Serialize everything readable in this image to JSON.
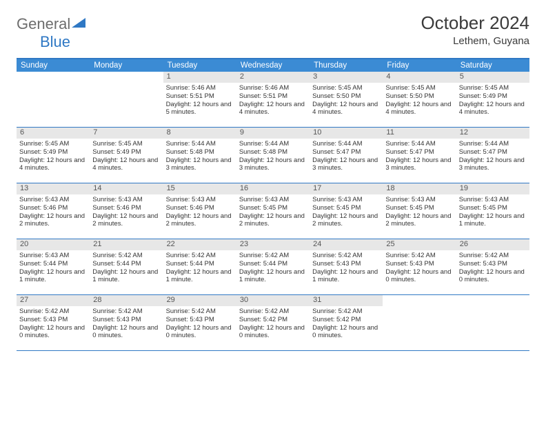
{
  "colors": {
    "header_bg": "#3b8bd4",
    "rule": "#2f78c4",
    "daynum_bg": "#e7e7e7",
    "text": "#333333",
    "title_text": "#3a3a3a",
    "logo_grey": "#6d6d6d",
    "logo_blue": "#2f78c4",
    "page_bg": "#ffffff"
  },
  "logo": {
    "part1": "General",
    "part2": "Blue"
  },
  "title": "October 2024",
  "location": "Lethem, Guyana",
  "weekdays": [
    "Sunday",
    "Monday",
    "Tuesday",
    "Wednesday",
    "Thursday",
    "Friday",
    "Saturday"
  ],
  "weeks": [
    [
      null,
      null,
      {
        "n": "1",
        "rise": "5:46 AM",
        "set": "5:51 PM",
        "day": "12 hours and 5 minutes."
      },
      {
        "n": "2",
        "rise": "5:46 AM",
        "set": "5:51 PM",
        "day": "12 hours and 4 minutes."
      },
      {
        "n": "3",
        "rise": "5:45 AM",
        "set": "5:50 PM",
        "day": "12 hours and 4 minutes."
      },
      {
        "n": "4",
        "rise": "5:45 AM",
        "set": "5:50 PM",
        "day": "12 hours and 4 minutes."
      },
      {
        "n": "5",
        "rise": "5:45 AM",
        "set": "5:49 PM",
        "day": "12 hours and 4 minutes."
      }
    ],
    [
      {
        "n": "6",
        "rise": "5:45 AM",
        "set": "5:49 PM",
        "day": "12 hours and 4 minutes."
      },
      {
        "n": "7",
        "rise": "5:45 AM",
        "set": "5:49 PM",
        "day": "12 hours and 4 minutes."
      },
      {
        "n": "8",
        "rise": "5:44 AM",
        "set": "5:48 PM",
        "day": "12 hours and 3 minutes."
      },
      {
        "n": "9",
        "rise": "5:44 AM",
        "set": "5:48 PM",
        "day": "12 hours and 3 minutes."
      },
      {
        "n": "10",
        "rise": "5:44 AM",
        "set": "5:47 PM",
        "day": "12 hours and 3 minutes."
      },
      {
        "n": "11",
        "rise": "5:44 AM",
        "set": "5:47 PM",
        "day": "12 hours and 3 minutes."
      },
      {
        "n": "12",
        "rise": "5:44 AM",
        "set": "5:47 PM",
        "day": "12 hours and 3 minutes."
      }
    ],
    [
      {
        "n": "13",
        "rise": "5:43 AM",
        "set": "5:46 PM",
        "day": "12 hours and 2 minutes."
      },
      {
        "n": "14",
        "rise": "5:43 AM",
        "set": "5:46 PM",
        "day": "12 hours and 2 minutes."
      },
      {
        "n": "15",
        "rise": "5:43 AM",
        "set": "5:46 PM",
        "day": "12 hours and 2 minutes."
      },
      {
        "n": "16",
        "rise": "5:43 AM",
        "set": "5:45 PM",
        "day": "12 hours and 2 minutes."
      },
      {
        "n": "17",
        "rise": "5:43 AM",
        "set": "5:45 PM",
        "day": "12 hours and 2 minutes."
      },
      {
        "n": "18",
        "rise": "5:43 AM",
        "set": "5:45 PM",
        "day": "12 hours and 2 minutes."
      },
      {
        "n": "19",
        "rise": "5:43 AM",
        "set": "5:45 PM",
        "day": "12 hours and 1 minute."
      }
    ],
    [
      {
        "n": "20",
        "rise": "5:43 AM",
        "set": "5:44 PM",
        "day": "12 hours and 1 minute."
      },
      {
        "n": "21",
        "rise": "5:42 AM",
        "set": "5:44 PM",
        "day": "12 hours and 1 minute."
      },
      {
        "n": "22",
        "rise": "5:42 AM",
        "set": "5:44 PM",
        "day": "12 hours and 1 minute."
      },
      {
        "n": "23",
        "rise": "5:42 AM",
        "set": "5:44 PM",
        "day": "12 hours and 1 minute."
      },
      {
        "n": "24",
        "rise": "5:42 AM",
        "set": "5:43 PM",
        "day": "12 hours and 1 minute."
      },
      {
        "n": "25",
        "rise": "5:42 AM",
        "set": "5:43 PM",
        "day": "12 hours and 0 minutes."
      },
      {
        "n": "26",
        "rise": "5:42 AM",
        "set": "5:43 PM",
        "day": "12 hours and 0 minutes."
      }
    ],
    [
      {
        "n": "27",
        "rise": "5:42 AM",
        "set": "5:43 PM",
        "day": "12 hours and 0 minutes."
      },
      {
        "n": "28",
        "rise": "5:42 AM",
        "set": "5:43 PM",
        "day": "12 hours and 0 minutes."
      },
      {
        "n": "29",
        "rise": "5:42 AM",
        "set": "5:43 PM",
        "day": "12 hours and 0 minutes."
      },
      {
        "n": "30",
        "rise": "5:42 AM",
        "set": "5:42 PM",
        "day": "12 hours and 0 minutes."
      },
      {
        "n": "31",
        "rise": "5:42 AM",
        "set": "5:42 PM",
        "day": "12 hours and 0 minutes."
      },
      null,
      null
    ]
  ],
  "labels": {
    "sunrise": "Sunrise: ",
    "sunset": "Sunset: ",
    "daylight": "Daylight: "
  }
}
